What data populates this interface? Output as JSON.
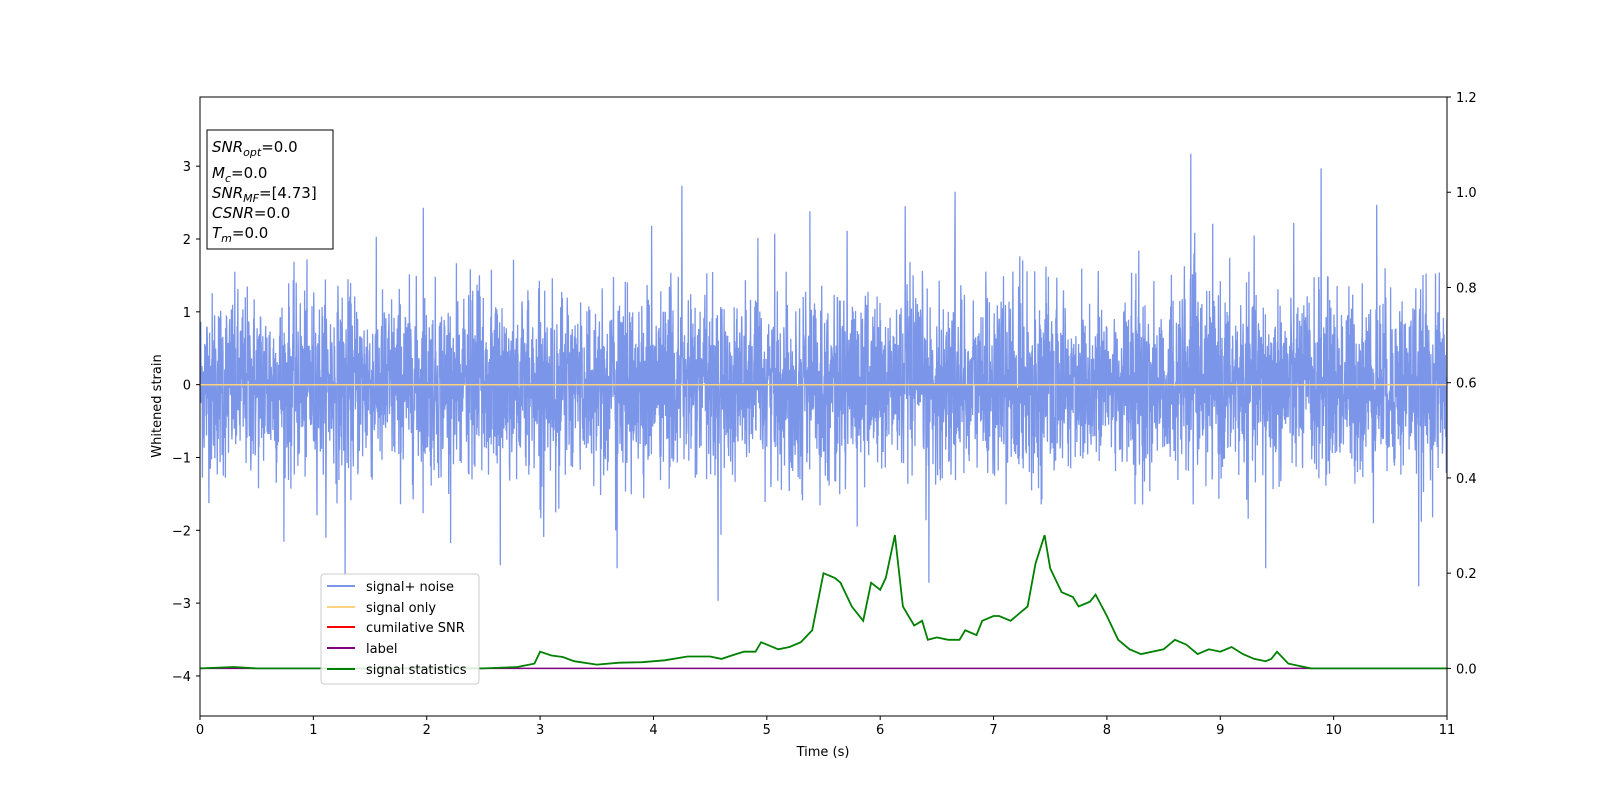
{
  "chart_data": {
    "type": "line",
    "xlabel": "Time (s)",
    "ylabel": "Whitened strain",
    "xlim": [
      0,
      11
    ],
    "ylim": [
      -4.55,
      3.95
    ],
    "y2lim": [
      -0.1,
      1.2
    ],
    "x_ticks": [
      0,
      1,
      2,
      3,
      4,
      5,
      6,
      7,
      8,
      9,
      10,
      11
    ],
    "y_ticks": [
      -4,
      -3,
      -2,
      -1,
      0,
      1,
      2,
      3
    ],
    "y2_ticks": [
      0.0,
      0.2,
      0.4,
      0.6,
      0.8,
      1.0,
      1.2
    ],
    "grid": false,
    "legend_position": "lower-left",
    "textbox": {
      "snr_opt": "=0.0",
      "mc": "=0.0",
      "snr_mf": "=[4.73]",
      "csnr": "=0.0",
      "tm": "=0.0"
    },
    "series": [
      {
        "name": "signal+ noise",
        "color": "#7b95e8",
        "axis": "left",
        "description_values": {
          "t_start": 0,
          "t_end": 11,
          "mean": 0.0,
          "typical_upper": 1.3,
          "typical_lower": -1.3,
          "peaks": [
            [
              8.74,
              3.17
            ],
            [
              9.89,
              2.97
            ],
            [
              10.38,
              2.47
            ],
            [
              6.22,
              2.45
            ],
            [
              4.25,
              2.73
            ],
            [
              6.66,
              2.65
            ],
            [
              5.38,
              2.38
            ],
            [
              1.97,
              2.43
            ]
          ],
          "troughs": [
            [
              4.57,
              -2.97
            ],
            [
              10.75,
              -2.77
            ],
            [
              1.28,
              -2.62
            ],
            [
              6.43,
              -2.72
            ],
            [
              9.4,
              -2.52
            ],
            [
              3.68,
              -2.52
            ],
            [
              2.65,
              -2.48
            ]
          ]
        }
      },
      {
        "name": "signal only",
        "color": "#ffd27f",
        "axis": "left",
        "x": [
          0,
          11
        ],
        "y": [
          0,
          0
        ]
      },
      {
        "name": "cumilative SNR",
        "color": "#ff0000",
        "axis": "right",
        "x": [],
        "y": []
      },
      {
        "name": "label",
        "color": "#800080",
        "axis": "right",
        "x": [
          0,
          11
        ],
        "y": [
          0,
          0
        ]
      },
      {
        "name": "signal statistics",
        "color": "#008000",
        "axis": "right",
        "x": [
          0,
          0.3,
          0.5,
          1,
          1.5,
          2,
          2.5,
          2.8,
          2.95,
          3.0,
          3.1,
          3.2,
          3.3,
          3.5,
          3.7,
          3.9,
          4.1,
          4.3,
          4.5,
          4.6,
          4.7,
          4.8,
          4.9,
          4.95,
          5.0,
          5.1,
          5.2,
          5.3,
          5.4,
          5.5,
          5.6,
          5.65,
          5.75,
          5.85,
          5.92,
          6.0,
          6.05,
          6.13,
          6.2,
          6.25,
          6.3,
          6.37,
          6.42,
          6.5,
          6.6,
          6.7,
          6.75,
          6.85,
          6.9,
          7.0,
          7.05,
          7.15,
          7.3,
          7.37,
          7.45,
          7.5,
          7.6,
          7.7,
          7.75,
          7.85,
          7.9,
          8.0,
          8.1,
          8.2,
          8.3,
          8.5,
          8.6,
          8.7,
          8.8,
          8.9,
          9.0,
          9.1,
          9.2,
          9.3,
          9.4,
          9.45,
          9.5,
          9.6,
          9.7,
          9.8,
          10.0,
          10.5,
          11
        ],
        "y": [
          0.0,
          0.003,
          0.0,
          0.0,
          0.0,
          0.0,
          0.0,
          0.003,
          0.01,
          0.035,
          0.027,
          0.024,
          0.015,
          0.008,
          0.012,
          0.013,
          0.017,
          0.025,
          0.025,
          0.02,
          0.028,
          0.035,
          0.035,
          0.055,
          0.05,
          0.04,
          0.045,
          0.055,
          0.08,
          0.2,
          0.19,
          0.18,
          0.13,
          0.1,
          0.18,
          0.165,
          0.19,
          0.28,
          0.13,
          0.11,
          0.09,
          0.1,
          0.06,
          0.065,
          0.06,
          0.06,
          0.08,
          0.07,
          0.1,
          0.11,
          0.11,
          0.1,
          0.13,
          0.22,
          0.28,
          0.21,
          0.16,
          0.15,
          0.13,
          0.14,
          0.155,
          0.11,
          0.06,
          0.04,
          0.03,
          0.04,
          0.06,
          0.05,
          0.03,
          0.04,
          0.035,
          0.045,
          0.03,
          0.02,
          0.015,
          0.02,
          0.035,
          0.01,
          0.005,
          0.0,
          0.0,
          0.0,
          0.0
        ]
      }
    ]
  }
}
